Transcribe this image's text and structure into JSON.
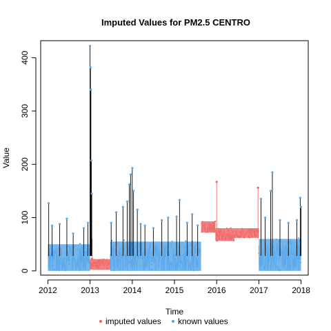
{
  "chart_data": {
    "type": "line",
    "title": "Imputed Values for  PM2.5 CENTRO",
    "xlabel": "Time",
    "ylabel": "Value",
    "xlim": [
      2011.83,
      2018.17
    ],
    "ylim": [
      -8,
      432
    ],
    "x_ticks": [
      2012,
      2013,
      2014,
      2015,
      2016,
      2017,
      2018
    ],
    "x_tick_labels": [
      "2012",
      "2013",
      "2014",
      "2015",
      "2016",
      "2017",
      "2018"
    ],
    "y_ticks": [
      0,
      100,
      200,
      300,
      400
    ],
    "y_tick_labels": [
      "0",
      "100",
      "200",
      "300",
      "400"
    ],
    "grid": false,
    "legend_position": "bottom",
    "series": [
      {
        "name": "imputed values",
        "color": "#f06a6a",
        "segments": [
          {
            "x_start": 2013.0,
            "x_end": 2013.48,
            "band_low": 2,
            "band_high": 22,
            "level_start": 10,
            "level_end": 18
          },
          {
            "x_start": 2015.63,
            "x_end": 2015.97,
            "band_low": 72,
            "band_high": 93,
            "level_start": 76,
            "level_end": 82
          },
          {
            "x_start": 2015.97,
            "x_end": 2016.42,
            "band_low": 56,
            "band_high": 80,
            "level_start": 68,
            "level_end": 64
          },
          {
            "x_start": 2016.42,
            "x_end": 2017.0,
            "band_low": 62,
            "band_high": 80,
            "level_start": 66,
            "level_end": 72
          }
        ],
        "peaks": [
          {
            "x": 2016.0,
            "y": 167
          },
          {
            "x": 2016.98,
            "y": 156
          },
          {
            "x": 2013.05,
            "y": 22
          }
        ]
      },
      {
        "name": "known values",
        "color": "#5aa9ea",
        "segments": [
          {
            "x_start": 2012.0,
            "x_end": 2013.0,
            "band_low": 0,
            "band_high": 50,
            "level_start": 20,
            "level_end": 25
          },
          {
            "x_start": 2013.48,
            "x_end": 2014.45,
            "band_low": 0,
            "band_high": 55,
            "level_start": 20,
            "level_end": 28
          },
          {
            "x_start": 2014.45,
            "x_end": 2015.63,
            "band_low": 0,
            "band_high": 55,
            "level_start": 22,
            "level_end": 25
          },
          {
            "x_start": 2017.0,
            "x_end": 2018.0,
            "band_low": 0,
            "band_high": 60,
            "level_start": 25,
            "level_end": 28
          }
        ],
        "peaks": [
          {
            "x": 2012.02,
            "y": 127
          },
          {
            "x": 2012.1,
            "y": 85
          },
          {
            "x": 2012.28,
            "y": 88
          },
          {
            "x": 2012.45,
            "y": 98
          },
          {
            "x": 2012.6,
            "y": 70
          },
          {
            "x": 2012.85,
            "y": 80
          },
          {
            "x": 2012.95,
            "y": 90
          },
          {
            "x": 2013.0,
            "y": 422
          },
          {
            "x": 2013.01,
            "y": 382
          },
          {
            "x": 2013.02,
            "y": 340
          },
          {
            "x": 2013.03,
            "y": 207
          },
          {
            "x": 2013.04,
            "y": 145
          },
          {
            "x": 2013.5,
            "y": 90
          },
          {
            "x": 2013.62,
            "y": 110
          },
          {
            "x": 2013.78,
            "y": 120
          },
          {
            "x": 2013.88,
            "y": 130
          },
          {
            "x": 2013.93,
            "y": 162
          },
          {
            "x": 2013.96,
            "y": 181
          },
          {
            "x": 2014.0,
            "y": 193
          },
          {
            "x": 2014.03,
            "y": 150
          },
          {
            "x": 2014.12,
            "y": 115
          },
          {
            "x": 2014.2,
            "y": 88
          },
          {
            "x": 2014.3,
            "y": 85
          },
          {
            "x": 2014.5,
            "y": 80
          },
          {
            "x": 2014.7,
            "y": 95
          },
          {
            "x": 2014.85,
            "y": 100
          },
          {
            "x": 2015.05,
            "y": 102
          },
          {
            "x": 2015.12,
            "y": 133
          },
          {
            "x": 2015.3,
            "y": 90
          },
          {
            "x": 2015.42,
            "y": 106
          },
          {
            "x": 2015.55,
            "y": 85
          },
          {
            "x": 2017.05,
            "y": 135
          },
          {
            "x": 2017.15,
            "y": 100
          },
          {
            "x": 2017.28,
            "y": 150
          },
          {
            "x": 2017.32,
            "y": 185
          },
          {
            "x": 2017.5,
            "y": 95
          },
          {
            "x": 2017.7,
            "y": 90
          },
          {
            "x": 2017.9,
            "y": 95
          },
          {
            "x": 2017.98,
            "y": 137
          },
          {
            "x": 2018.0,
            "y": 120
          }
        ]
      }
    ]
  }
}
